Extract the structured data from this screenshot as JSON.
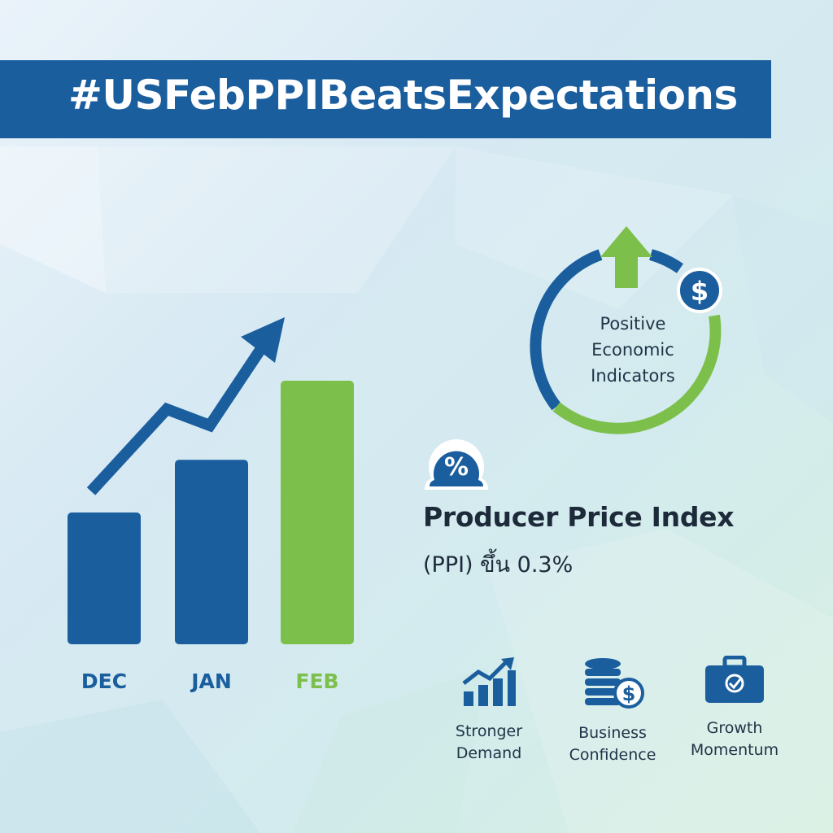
{
  "banner": {
    "hashtag": "#USFebPPIBeatsExpectations"
  },
  "chart_data": {
    "type": "bar",
    "categories": [
      "DEC",
      "JAN",
      "FEB"
    ],
    "values": [
      1.0,
      1.4,
      2.0
    ],
    "trend_arrow": "up",
    "colors": {
      "DEC": "#1b5e9e",
      "JAN": "#1b5e9e",
      "FEB": "#7cc04b"
    }
  },
  "indicator": {
    "label_lines": [
      "Positive",
      "Economic",
      "Indicators"
    ],
    "arrow_icon": "up-arrow-icon",
    "badge_icon": "dollar-icon",
    "badge_symbol": "$"
  },
  "ppi": {
    "badge_icon": "percent-icon",
    "badge_symbol": "%",
    "title": "Producer Price Index",
    "subtitle": "(PPI) ขึ้น 0.3%"
  },
  "features": [
    {
      "icon": "bar-chart-growth-icon",
      "lines": [
        "Stronger",
        "Demand"
      ]
    },
    {
      "icon": "coins-dollar-icon",
      "lines": [
        "Business",
        "Confidence"
      ]
    },
    {
      "icon": "briefcase-check-icon",
      "lines": [
        "Growth",
        "Momentum"
      ]
    }
  ],
  "colors": {
    "blue": "#1b5e9e",
    "green": "#7cc04b",
    "text_dark": "#1d2a3a"
  }
}
